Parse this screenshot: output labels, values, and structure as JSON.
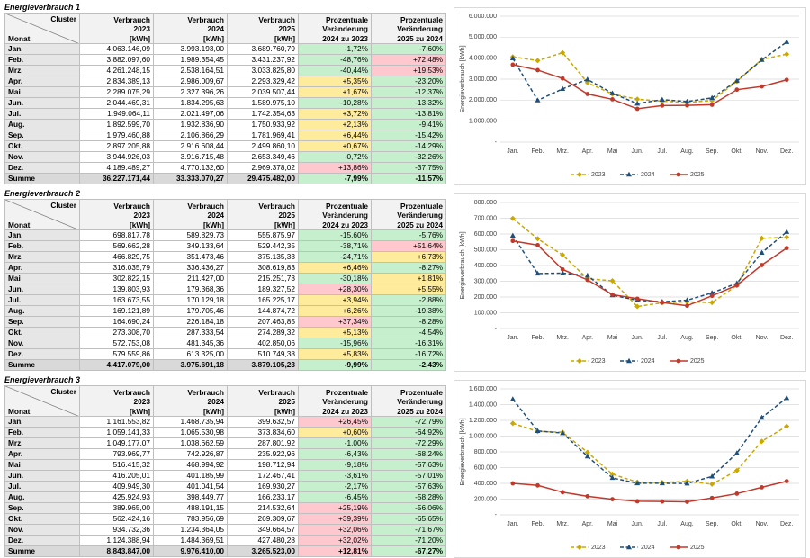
{
  "tables": [
    {
      "title": "Energieverbrauch 1",
      "corner_top": "Cluster",
      "corner_bottom": "Monat",
      "columns": [
        "Verbrauch\n2023\n[kWh]",
        "Verbrauch\n2024\n[kWh]",
        "Verbrauch\n2025\n[kWh]",
        "Prozentuale\nVeränderung\n2024 zu 2023",
        "Prozentuale\nVeränderung\n2025 zu 2024"
      ],
      "rows": [
        {
          "label": "Jan.",
          "cells": [
            "4.063.146,09",
            "3.993.193,00",
            "3.689.760,79",
            "-1,72%",
            "-7,60%"
          ],
          "fills": [
            "#c6efce",
            "#c6efce"
          ]
        },
        {
          "label": "Feb.",
          "cells": [
            "3.882.097,60",
            "1.989.354,45",
            "3.431.237,92",
            "-48,76%",
            "+72,48%"
          ],
          "fills": [
            "#c6efce",
            "#ffc7ce"
          ]
        },
        {
          "label": "Mrz.",
          "cells": [
            "4.261.248,15",
            "2.538.164,51",
            "3.033.825,80",
            "-40,44%",
            "+19,53%"
          ],
          "fills": [
            "#c6efce",
            "#ffc7ce"
          ]
        },
        {
          "label": "Apr.",
          "cells": [
            "2.834.389,13",
            "2.986.009,67",
            "2.293.329,42",
            "+5,35%",
            "-23,20%"
          ],
          "fills": [
            "#ffeb9c",
            "#c6efce"
          ]
        },
        {
          "label": "Mai",
          "cells": [
            "2.289.075,29",
            "2.327.396,26",
            "2.039.507,44",
            "+1,67%",
            "-12,37%"
          ],
          "fills": [
            "#ffeb9c",
            "#c6efce"
          ]
        },
        {
          "label": "Jun.",
          "cells": [
            "2.044.469,31",
            "1.834.295,63",
            "1.589.975,10",
            "-10,28%",
            "-13,32%"
          ],
          "fills": [
            "#c6efce",
            "#c6efce"
          ]
        },
        {
          "label": "Jul.",
          "cells": [
            "1.949.064,11",
            "2.021.497,06",
            "1.742.354,63",
            "+3,72%",
            "-13,81%"
          ],
          "fills": [
            "#ffeb9c",
            "#c6efce"
          ]
        },
        {
          "label": "Aug.",
          "cells": [
            "1.892.599,70",
            "1.932.836,90",
            "1.750.933,92",
            "+2,13%",
            "-9,41%"
          ],
          "fills": [
            "#ffeb9c",
            "#c6efce"
          ]
        },
        {
          "label": "Sep.",
          "cells": [
            "1.979.460,88",
            "2.106.866,29",
            "1.781.969,41",
            "+6,44%",
            "-15,42%"
          ],
          "fills": [
            "#ffeb9c",
            "#c6efce"
          ]
        },
        {
          "label": "Okt.",
          "cells": [
            "2.897.205,88",
            "2.916.608,44",
            "2.499.860,10",
            "+0,67%",
            "-14,29%"
          ],
          "fills": [
            "#ffeb9c",
            "#c6efce"
          ]
        },
        {
          "label": "Nov.",
          "cells": [
            "3.944.926,03",
            "3.916.715,48",
            "2.653.349,46",
            "-0,72%",
            "-32,26%"
          ],
          "fills": [
            "#c6efce",
            "#c6efce"
          ]
        },
        {
          "label": "Dez.",
          "cells": [
            "4.189.489,27",
            "4.770.132,60",
            "2.969.378,02",
            "+13,86%",
            "-37,75%"
          ],
          "fills": [
            "#ffc7ce",
            "#c6efce"
          ]
        }
      ],
      "total": {
        "label": "Summe",
        "cells": [
          "36.227.171,44",
          "33.333.070,27",
          "29.475.482,00",
          "-7,99%",
          "-11,57%"
        ],
        "fills": [
          "#c6efce",
          "#c6efce"
        ]
      }
    },
    {
      "title": "Energieverbrauch 2",
      "corner_top": "Cluster",
      "corner_bottom": "Monat",
      "columns": [
        "Verbrauch\n2023\n[kWh]",
        "Verbrauch\n2024\n[kWh]",
        "Verbrauch\n2025\n[kWh]",
        "Prozentuale\nVeränderung\n2024 zu 2023",
        "Prozentuale\nVeränderung\n2025 zu 2024"
      ],
      "rows": [
        {
          "label": "Jan.",
          "cells": [
            "698.817,78",
            "589.829,73",
            "555.875,97",
            "-15,60%",
            "-5,76%"
          ],
          "fills": [
            "#c6efce",
            "#c6efce"
          ]
        },
        {
          "label": "Feb.",
          "cells": [
            "569.662,28",
            "349.133,64",
            "529.442,35",
            "-38,71%",
            "+51,64%"
          ],
          "fills": [
            "#c6efce",
            "#ffc7ce"
          ]
        },
        {
          "label": "Mrz.",
          "cells": [
            "466.829,75",
            "351.473,46",
            "375.135,33",
            "-24,71%",
            "+6,73%"
          ],
          "fills": [
            "#c6efce",
            "#ffeb9c"
          ]
        },
        {
          "label": "Apr.",
          "cells": [
            "316.035,79",
            "336.436,27",
            "308.619,83",
            "+6,46%",
            "-8,27%"
          ],
          "fills": [
            "#ffeb9c",
            "#c6efce"
          ]
        },
        {
          "label": "Mai",
          "cells": [
            "302.822,15",
            "211.427,00",
            "215.251,73",
            "-30,18%",
            "+1,81%"
          ],
          "fills": [
            "#c6efce",
            "#ffeb9c"
          ]
        },
        {
          "label": "Jun.",
          "cells": [
            "139.803,93",
            "179.368,36",
            "189.327,52",
            "+28,30%",
            "+5,55%"
          ],
          "fills": [
            "#ffc7ce",
            "#ffeb9c"
          ]
        },
        {
          "label": "Jul.",
          "cells": [
            "163.673,55",
            "170.129,18",
            "165.225,17",
            "+3,94%",
            "-2,88%"
          ],
          "fills": [
            "#ffeb9c",
            "#c6efce"
          ]
        },
        {
          "label": "Aug.",
          "cells": [
            "169.121,89",
            "179.705,46",
            "144.874,72",
            "+6,26%",
            "-19,38%"
          ],
          "fills": [
            "#ffeb9c",
            "#c6efce"
          ]
        },
        {
          "label": "Sep.",
          "cells": [
            "164.690,24",
            "226.184,18",
            "207.463,85",
            "+37,34%",
            "-8,28%"
          ],
          "fills": [
            "#ffc7ce",
            "#c6efce"
          ]
        },
        {
          "label": "Okt.",
          "cells": [
            "273.308,70",
            "287.333,54",
            "274.289,32",
            "+5,13%",
            "-4,54%"
          ],
          "fills": [
            "#ffeb9c",
            "#c6efce"
          ]
        },
        {
          "label": "Nov.",
          "cells": [
            "572.753,08",
            "481.345,36",
            "402.850,06",
            "-15,96%",
            "-16,31%"
          ],
          "fills": [
            "#c6efce",
            "#c6efce"
          ]
        },
        {
          "label": "Dez.",
          "cells": [
            "579.559,86",
            "613.325,00",
            "510.749,38",
            "+5,83%",
            "-16,72%"
          ],
          "fills": [
            "#ffeb9c",
            "#c6efce"
          ]
        }
      ],
      "total": {
        "label": "Summe",
        "cells": [
          "4.417.079,00",
          "3.975.691,18",
          "3.879.105,23",
          "-9,99%",
          "-2,43%"
        ],
        "fills": [
          "#c6efce",
          "#c6efce"
        ]
      }
    },
    {
      "title": "Energieverbrauch 3",
      "corner_top": "Cluster",
      "corner_bottom": "Monat",
      "columns": [
        "Verbrauch\n2023\n[kWh]",
        "Verbrauch\n2024\n[kWh]",
        "Verbrauch\n2025\n[kWh]",
        "Prozentuale\nVeränderung\n2024 zu 2023",
        "Prozentuale\nVeränderung\n2025 zu 2024"
      ],
      "rows": [
        {
          "label": "Jan.",
          "cells": [
            "1.161.553,82",
            "1.468.735,94",
            "399.632,57",
            "+26,45%",
            "-72,79%"
          ],
          "fills": [
            "#ffc7ce",
            "#c6efce"
          ]
        },
        {
          "label": "Feb.",
          "cells": [
            "1.059.141,33",
            "1.065.530,98",
            "373.834,60",
            "+0,60%",
            "-64,92%"
          ],
          "fills": [
            "#ffeb9c",
            "#c6efce"
          ]
        },
        {
          "label": "Mrz.",
          "cells": [
            "1.049.177,07",
            "1.038.662,59",
            "287.801,92",
            "-1,00%",
            "-72,29%"
          ],
          "fills": [
            "#c6efce",
            "#c6efce"
          ]
        },
        {
          "label": "Apr.",
          "cells": [
            "793.969,77",
            "742.926,87",
            "235.922,96",
            "-6,43%",
            "-68,24%"
          ],
          "fills": [
            "#c6efce",
            "#c6efce"
          ]
        },
        {
          "label": "Mai",
          "cells": [
            "516.415,32",
            "468.994,92",
            "198.712,94",
            "-9,18%",
            "-57,63%"
          ],
          "fills": [
            "#c6efce",
            "#c6efce"
          ]
        },
        {
          "label": "Jun.",
          "cells": [
            "416.205,01",
            "401.185,99",
            "172.467,41",
            "-3,61%",
            "-57,01%"
          ],
          "fills": [
            "#c6efce",
            "#c6efce"
          ]
        },
        {
          "label": "Jul.",
          "cells": [
            "409.949,30",
            "401.041,54",
            "169.930,27",
            "-2,17%",
            "-57,63%"
          ],
          "fills": [
            "#c6efce",
            "#c6efce"
          ]
        },
        {
          "label": "Aug.",
          "cells": [
            "425.924,93",
            "398.449,77",
            "166.233,17",
            "-6,45%",
            "-58,28%"
          ],
          "fills": [
            "#c6efce",
            "#c6efce"
          ]
        },
        {
          "label": "Sep.",
          "cells": [
            "389.965,00",
            "488.191,15",
            "214.532,64",
            "+25,19%",
            "-56,06%"
          ],
          "fills": [
            "#ffc7ce",
            "#c6efce"
          ]
        },
        {
          "label": "Okt.",
          "cells": [
            "562.424,16",
            "783.956,69",
            "269.309,67",
            "+39,39%",
            "-65,65%"
          ],
          "fills": [
            "#ffc7ce",
            "#c6efce"
          ]
        },
        {
          "label": "Nov.",
          "cells": [
            "934.732,36",
            "1.234.364,05",
            "349.664,57",
            "+32,06%",
            "-71,67%"
          ],
          "fills": [
            "#ffc7ce",
            "#c6efce"
          ]
        },
        {
          "label": "Dez.",
          "cells": [
            "1.124.388,94",
            "1.484.369,51",
            "427.480,28",
            "+32,02%",
            "-71,20%"
          ],
          "fills": [
            "#ffc7ce",
            "#c6efce"
          ]
        }
      ],
      "total": {
        "label": "Summe",
        "cells": [
          "8.843.847,00",
          "9.976.410,00",
          "3.265.523,00",
          "+12,81%",
          "-67,27%"
        ],
        "fills": [
          "#ffc7ce",
          "#c6efce"
        ]
      }
    }
  ],
  "chart_data": [
    {
      "type": "line",
      "y_label": "Energieverbrauch [kWh]",
      "grid": true,
      "legend": "bottom",
      "categories": [
        "Jan.",
        "Feb.",
        "Mrz.",
        "Apr.",
        "Mai",
        "Jun.",
        "Jul.",
        "Aug.",
        "Sep.",
        "Okt.",
        "Nov.",
        "Dez."
      ],
      "ylim": [
        0,
        6000000
      ],
      "yticks": [
        {
          "value": 0,
          "label": "-"
        },
        {
          "value": 1000000,
          "label": "1.000.000"
        },
        {
          "value": 2000000,
          "label": "2.000.000"
        },
        {
          "value": 3000000,
          "label": "3.000.000"
        },
        {
          "value": 4000000,
          "label": "4.000.000"
        },
        {
          "value": 5000000,
          "label": "5.000.000"
        },
        {
          "value": 6000000,
          "label": "6.000.000"
        }
      ],
      "series": [
        {
          "name": "2023",
          "color": "#c9a800",
          "line_style": "dashed",
          "marker": "diamond",
          "values": [
            4063146.09,
            3882097.6,
            4261248.15,
            2834389.13,
            2289075.29,
            2044469.31,
            1949064.11,
            1892599.7,
            1979460.88,
            2897205.88,
            3944926.03,
            4189489.27
          ]
        },
        {
          "name": "2024",
          "color": "#1f4e79",
          "line_style": "dashed",
          "marker": "triangle",
          "values": [
            3993193.0,
            1989354.45,
            2538164.51,
            2986009.67,
            2327396.26,
            1834295.63,
            2021497.06,
            1932836.9,
            2106866.29,
            2916608.44,
            3916715.48,
            4770132.6
          ]
        },
        {
          "name": "2025",
          "color": "#c0392b",
          "line_style": "solid",
          "marker": "circle",
          "values": [
            3689760.79,
            3431237.92,
            3033825.8,
            2293329.42,
            2039507.44,
            1589975.1,
            1742354.63,
            1750933.92,
            1781969.41,
            2499860.1,
            2653349.46,
            2969378.02
          ]
        }
      ]
    },
    {
      "type": "line",
      "y_label": "Energieverbrauch [kWh]",
      "grid": true,
      "legend": "bottom",
      "categories": [
        "Jan.",
        "Feb.",
        "Mrz.",
        "Apr.",
        "Mai",
        "Jun.",
        "Jul.",
        "Aug.",
        "Sep.",
        "Okt.",
        "Nov.",
        "Dez."
      ],
      "ylim": [
        0,
        800000
      ],
      "yticks": [
        {
          "value": 0,
          "label": "-"
        },
        {
          "value": 100000,
          "label": "100.000"
        },
        {
          "value": 200000,
          "label": "200.000"
        },
        {
          "value": 300000,
          "label": "300.000"
        },
        {
          "value": 400000,
          "label": "400.000"
        },
        {
          "value": 500000,
          "label": "500.000"
        },
        {
          "value": 600000,
          "label": "600.000"
        },
        {
          "value": 700000,
          "label": "700.000"
        },
        {
          "value": 800000,
          "label": "800.000"
        }
      ],
      "series": [
        {
          "name": "2023",
          "color": "#c9a800",
          "line_style": "dashed",
          "marker": "diamond",
          "values": [
            698817.78,
            569662.28,
            466829.75,
            316035.79,
            302822.15,
            139803.93,
            163673.55,
            169121.89,
            164690.24,
            273308.7,
            572753.08,
            579559.86
          ]
        },
        {
          "name": "2024",
          "color": "#1f4e79",
          "line_style": "dashed",
          "marker": "triangle",
          "values": [
            589829.73,
            349133.64,
            351473.46,
            336436.27,
            211427.0,
            179368.36,
            170129.18,
            179705.46,
            226184.18,
            287333.54,
            481345.36,
            613325.0
          ]
        },
        {
          "name": "2025",
          "color": "#c0392b",
          "line_style": "solid",
          "marker": "circle",
          "values": [
            555875.97,
            529442.35,
            375135.33,
            308619.83,
            215251.73,
            189327.52,
            165225.17,
            144874.72,
            207463.85,
            274289.32,
            402850.06,
            510749.38
          ]
        }
      ]
    },
    {
      "type": "line",
      "y_label": "Energieverbrauch [kWh]",
      "grid": true,
      "legend": "bottom",
      "categories": [
        "Jan.",
        "Feb.",
        "Mrz.",
        "Apr.",
        "Mai",
        "Jun.",
        "Jul.",
        "Aug.",
        "Sep.",
        "Okt.",
        "Nov.",
        "Dez."
      ],
      "ylim": [
        0,
        1600000
      ],
      "yticks": [
        {
          "value": 0,
          "label": "-"
        },
        {
          "value": 200000,
          "label": "200.000"
        },
        {
          "value": 400000,
          "label": "400.000"
        },
        {
          "value": 600000,
          "label": "600.000"
        },
        {
          "value": 800000,
          "label": "800.000"
        },
        {
          "value": 1000000,
          "label": "1.000.000"
        },
        {
          "value": 1200000,
          "label": "1.200.000"
        },
        {
          "value": 1400000,
          "label": "1.400.000"
        },
        {
          "value": 1600000,
          "label": "1.600.000"
        }
      ],
      "series": [
        {
          "name": "2023",
          "color": "#c9a800",
          "line_style": "dashed",
          "marker": "diamond",
          "values": [
            1161553.82,
            1059141.33,
            1049177.07,
            793969.77,
            516415.32,
            416205.01,
            409949.3,
            425924.93,
            389965.0,
            562424.16,
            934732.36,
            1124388.94
          ]
        },
        {
          "name": "2024",
          "color": "#1f4e79",
          "line_style": "dashed",
          "marker": "triangle",
          "values": [
            1468735.94,
            1065530.98,
            1038662.59,
            742926.87,
            468994.92,
            401185.99,
            401041.54,
            398449.77,
            488191.15,
            783956.69,
            1234364.05,
            1484369.51
          ]
        },
        {
          "name": "2025",
          "color": "#c0392b",
          "line_style": "solid",
          "marker": "circle",
          "values": [
            399632.57,
            373834.6,
            287801.92,
            235922.96,
            198712.94,
            172467.41,
            169930.27,
            166233.17,
            214532.64,
            269309.67,
            349664.57,
            427480.28
          ]
        }
      ]
    }
  ]
}
